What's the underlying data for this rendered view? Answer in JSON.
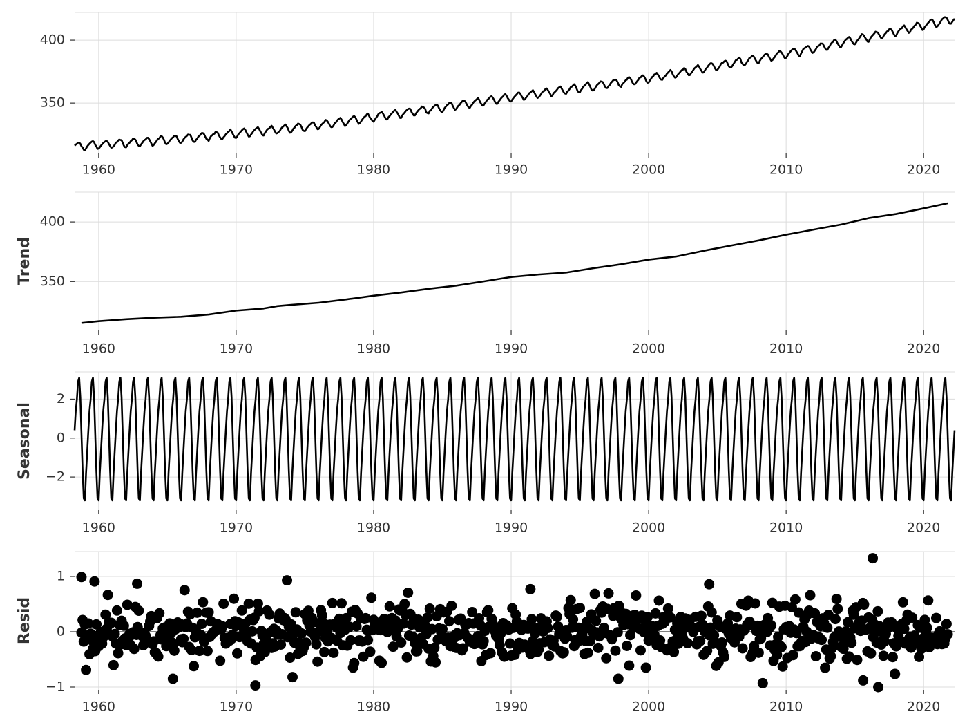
{
  "colors": {
    "line": "#000000",
    "grid": "#dcdcdc",
    "tick_mark": "#333333",
    "text": "#333333",
    "background": "#ffffff"
  },
  "chart_data": [
    {
      "type": "line",
      "title": "",
      "xlabel": "",
      "ylabel": "",
      "xlim": [
        1958.25,
        2022.25
      ],
      "ylim": [
        310,
        422
      ],
      "x_ticks": [
        1960,
        1970,
        1980,
        1990,
        2000,
        2010,
        2020
      ],
      "y_ticks": [
        350,
        400
      ],
      "grid": true,
      "trend_points": {
        "x": [
          1958.25,
          1965,
          1975,
          1985,
          1990,
          1995,
          2000,
          2005,
          2010,
          2015,
          2022.25
        ],
        "y": [
          315.5,
          320.5,
          331,
          346.5,
          354.5,
          362,
          369.5,
          379.5,
          389,
          400,
          417
        ]
      },
      "seasonal_amplitude": 3.2,
      "series": [
        {
          "values": []
        }
      ]
    },
    {
      "type": "line",
      "title": "",
      "xlabel": "",
      "ylabel": "Trend",
      "xlim": [
        1958.25,
        2022.25
      ],
      "ylim": [
        309,
        425
      ],
      "x_ticks": [
        1960,
        1970,
        1980,
        1990,
        2000,
        2010,
        2020
      ],
      "y_ticks": [
        350,
        400
      ],
      "grid": true,
      "series": [
        {
          "x": [
            1958.75,
            1960,
            1962,
            1964,
            1966,
            1968,
            1970,
            1972,
            1973,
            1974,
            1976,
            1978,
            1980,
            1982,
            1984,
            1986,
            1988,
            1989,
            1990,
            1992,
            1994,
            1996,
            1998,
            2000,
            2002,
            2004,
            2006,
            2008,
            2010,
            2012,
            2014,
            2016,
            2018,
            2020,
            2021.75
          ],
          "values": [
            315.2,
            316.7,
            318.4,
            319.6,
            320.4,
            322.3,
            325.6,
            327.4,
            329.4,
            330.4,
            332.2,
            335.0,
            338.1,
            340.8,
            343.9,
            346.5,
            350.1,
            352.0,
            353.8,
            355.9,
            357.5,
            361.2,
            364.5,
            368.4,
            371.0,
            375.8,
            380.2,
            384.5,
            389.3,
            393.6,
            397.8,
            403.2,
            406.7,
            411.4,
            415.7
          ]
        }
      ]
    },
    {
      "type": "line",
      "title": "",
      "xlabel": "",
      "ylabel": "Seasonal",
      "xlim": [
        1958.25,
        2022.25
      ],
      "ylim": [
        -3.7,
        3.4
      ],
      "x_ticks": [
        1960,
        1970,
        1980,
        1990,
        2000,
        2010,
        2020
      ],
      "y_ticks": [
        2,
        0,
        -2
      ],
      "y_tick_labels": [
        "2",
        "0",
        "−2"
      ],
      "grid": true,
      "seasonal_profile": [
        0.4,
        1.4,
        2.0,
        2.9,
        3.1,
        2.1,
        0.2,
        -1.7,
        -3.1,
        -3.2,
        -1.8,
        -0.7
      ],
      "series": [
        {
          "values": []
        }
      ]
    },
    {
      "type": "scatter",
      "title": "",
      "xlabel": "",
      "ylabel": "Resid",
      "xlim": [
        1958.25,
        2022.25
      ],
      "ylim": [
        -1.05,
        1.45
      ],
      "x_ticks": [
        1960,
        1970,
        1980,
        1990,
        2000,
        2010,
        2020
      ],
      "y_ticks": [
        1,
        0,
        -1
      ],
      "y_tick_labels": [
        "1",
        "0",
        "−1"
      ],
      "grid": true,
      "baseline": 0,
      "highlighted_points": {
        "x": [
          1958.75,
          1959.7,
          1962.8,
          1965.4,
          1971.4,
          1973.7,
          1974.1,
          1991.4,
          1997.8,
          1999.8,
          2004.4,
          2008.3,
          2015.6,
          2016.3,
          2016.7
        ],
        "y": [
          0.99,
          0.91,
          0.87,
          -0.85,
          -0.97,
          0.93,
          -0.82,
          0.77,
          -0.85,
          -0.65,
          0.86,
          -0.93,
          -0.88,
          1.33,
          -1.0
        ]
      },
      "series": [
        {
          "values": []
        }
      ]
    }
  ]
}
